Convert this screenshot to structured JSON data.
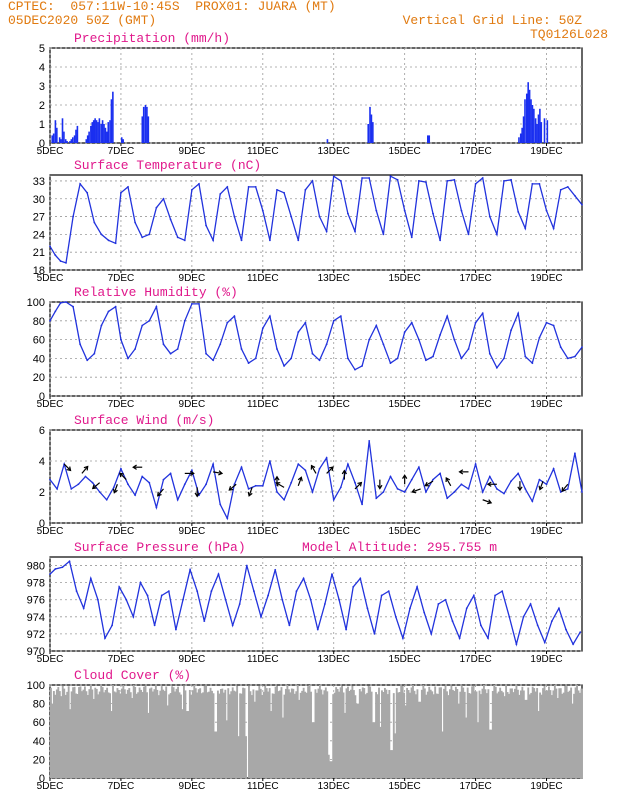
{
  "header": {
    "line1": "CPTEC:  057:11W-10:45S  PROX01: JUARA (MT)",
    "line2": "05DEC2020 50Z (GMT)",
    "grid_line": "Vertical Grid Line: 50Z",
    "code": "TQ0126L028"
  },
  "colors": {
    "header_text": "#e07a10",
    "panel_title": "#e0198c",
    "line": "#2233dd",
    "bar": "#1a2ff0",
    "cloud": "#a8a8a8",
    "grid": "#9a9a9a"
  },
  "x_axis": {
    "range": [
      5,
      20
    ],
    "ticks": [
      5,
      7,
      9,
      11,
      13,
      15,
      17,
      19
    ],
    "tick_labels": [
      "5DEC",
      "7DEC",
      "9DEC",
      "11DEC",
      "13DEC",
      "15DEC",
      "17DEC",
      "19DEC"
    ]
  },
  "chart_data": [
    {
      "type": "bar",
      "title": "Precipitation (mm/h)",
      "ylim": [
        0,
        5
      ],
      "yticks": [
        0,
        1,
        2,
        3,
        4,
        5
      ],
      "grid": true,
      "x": [
        5.04,
        5.08,
        5.13,
        5.17,
        5.25,
        5.29,
        5.33,
        5.37,
        5.42,
        5.46,
        5.54,
        5.58,
        5.62,
        5.67,
        5.71,
        5.75,
        6.0,
        6.04,
        6.08,
        6.13,
        6.17,
        6.21,
        6.25,
        6.29,
        6.33,
        6.37,
        6.42,
        6.46,
        6.5,
        6.54,
        6.58,
        6.62,
        6.67,
        6.71,
        6.75,
        7.0,
        7.04,
        7.58,
        7.62,
        7.67,
        7.71,
        7.75,
        12.8,
        13.95,
        14.0,
        14.04,
        14.08,
        15.63,
        15.67,
        18.2,
        18.25,
        18.29,
        18.33,
        18.37,
        18.42,
        18.46,
        18.5,
        18.54,
        18.58,
        18.62,
        18.67,
        18.71,
        18.75,
        18.79,
        18.83,
        18.92,
        19.0
      ],
      "values": [
        0.4,
        0.5,
        1.2,
        0.8,
        0.3,
        0.2,
        1.3,
        0.6,
        0.2,
        0.1,
        0.1,
        0.2,
        0.3,
        0.4,
        0.7,
        0.9,
        0.2,
        0.4,
        0.6,
        0.9,
        1.1,
        1.2,
        1.3,
        1.2,
        1.1,
        1.3,
        1.0,
        1.2,
        1.0,
        0.8,
        0.6,
        1.1,
        1.2,
        2.3,
        2.7,
        0.3,
        0.2,
        1.4,
        1.9,
        2.0,
        1.9,
        1.4,
        0.2,
        1.0,
        1.9,
        1.5,
        1.1,
        0.4,
        0.4,
        0.3,
        0.5,
        0.8,
        1.4,
        2.3,
        2.6,
        3.2,
        2.8,
        2.3,
        2.0,
        1.8,
        1.3,
        1.0,
        1.5,
        1.8,
        1.1,
        1.3,
        1.2
      ]
    },
    {
      "type": "line",
      "title": "Surface Temperature (nC)",
      "ylim": [
        18,
        34
      ],
      "yticks": [
        18,
        21,
        24,
        27,
        30,
        33
      ],
      "grid": true,
      "x": [
        5.0,
        5.15,
        5.3,
        5.45,
        5.65,
        5.85,
        6.05,
        6.25,
        6.45,
        6.65,
        6.85,
        7.0,
        7.2,
        7.4,
        7.6,
        7.8,
        8.0,
        8.2,
        8.4,
        8.6,
        8.8,
        9.0,
        9.2,
        9.4,
        9.6,
        9.8,
        10.0,
        10.2,
        10.4,
        10.6,
        10.8,
        11.0,
        11.2,
        11.4,
        11.6,
        11.8,
        12.0,
        12.2,
        12.4,
        12.6,
        12.8,
        13.0,
        13.2,
        13.4,
        13.6,
        13.8,
        14.0,
        14.2,
        14.4,
        14.6,
        14.8,
        15.0,
        15.2,
        15.4,
        15.6,
        15.8,
        16.0,
        16.2,
        16.4,
        16.6,
        16.8,
        17.0,
        17.2,
        17.4,
        17.6,
        17.8,
        18.0,
        18.2,
        18.4,
        18.6,
        18.8,
        19.0,
        19.2,
        19.4,
        19.6,
        19.8,
        20.0
      ],
      "values": [
        22,
        20.5,
        19.5,
        19.2,
        27,
        32.5,
        31,
        26,
        24,
        23,
        22.5,
        31,
        32,
        26,
        23.5,
        24,
        28.5,
        30,
        26.5,
        23.5,
        23,
        31.5,
        32.5,
        25.5,
        23,
        30.8,
        32,
        27,
        23,
        32,
        32,
        28,
        23,
        31.5,
        31,
        27,
        23,
        31.5,
        33,
        27,
        24.5,
        33.8,
        33,
        27.5,
        24.5,
        33.5,
        33.5,
        28,
        24,
        33.8,
        33.2,
        28,
        23.5,
        33,
        32.8,
        27.5,
        23,
        33,
        33.2,
        28,
        24,
        32.5,
        33.5,
        27,
        24,
        33,
        33.2,
        27.8,
        25,
        32.5,
        32.5,
        28,
        25,
        31.5,
        32,
        30.5,
        29
      ]
    },
    {
      "type": "line",
      "title": "Relative Humidity (%)",
      "ylim": [
        0,
        100
      ],
      "yticks": [
        0,
        20,
        40,
        60,
        80,
        100
      ],
      "grid": true,
      "x": [
        5.0,
        5.15,
        5.3,
        5.45,
        5.65,
        5.85,
        6.05,
        6.25,
        6.45,
        6.65,
        6.85,
        7.0,
        7.2,
        7.4,
        7.6,
        7.8,
        8.0,
        8.2,
        8.4,
        8.6,
        8.8,
        9.0,
        9.2,
        9.4,
        9.6,
        9.8,
        10.0,
        10.2,
        10.4,
        10.6,
        10.8,
        11.0,
        11.2,
        11.4,
        11.6,
        11.8,
        12.0,
        12.2,
        12.4,
        12.6,
        12.8,
        13.0,
        13.2,
        13.4,
        13.6,
        13.8,
        14.0,
        14.2,
        14.4,
        14.6,
        14.8,
        15.0,
        15.2,
        15.4,
        15.6,
        15.8,
        16.0,
        16.2,
        16.4,
        16.6,
        16.8,
        17.0,
        17.2,
        17.4,
        17.6,
        17.8,
        18.0,
        18.2,
        18.4,
        18.6,
        18.8,
        19.0,
        19.2,
        19.4,
        19.6,
        19.8,
        20.0
      ],
      "values": [
        80,
        90,
        99,
        100,
        95,
        55,
        38,
        45,
        75,
        90,
        95,
        60,
        40,
        50,
        75,
        80,
        95,
        55,
        45,
        50,
        80,
        98,
        98,
        45,
        38,
        55,
        78,
        85,
        50,
        35,
        40,
        72,
        85,
        50,
        32,
        40,
        68,
        78,
        45,
        38,
        55,
        80,
        85,
        40,
        28,
        32,
        60,
        75,
        55,
        35,
        40,
        68,
        78,
        60,
        38,
        42,
        65,
        85,
        60,
        40,
        50,
        78,
        88,
        45,
        30,
        40,
        70,
        88,
        42,
        35,
        62,
        78,
        75,
        52,
        40,
        42,
        52
      ]
    },
    {
      "type": "line",
      "title": "Surface Wind (m/s)",
      "ylim": [
        0,
        6
      ],
      "yticks": [
        0,
        2,
        4,
        6
      ],
      "grid": true,
      "x": [
        5.0,
        5.2,
        5.4,
        5.6,
        5.8,
        6.0,
        6.2,
        6.4,
        6.6,
        6.8,
        7.0,
        7.2,
        7.4,
        7.6,
        7.8,
        8.0,
        8.2,
        8.4,
        8.6,
        8.8,
        9.0,
        9.2,
        9.4,
        9.6,
        9.8,
        10.0,
        10.2,
        10.4,
        10.6,
        10.8,
        11.0,
        11.2,
        11.4,
        11.6,
        11.8,
        12.0,
        12.2,
        12.4,
        12.6,
        12.8,
        13.0,
        13.2,
        13.4,
        13.6,
        13.8,
        14.0,
        14.2,
        14.4,
        14.6,
        14.8,
        15.0,
        15.2,
        15.4,
        15.6,
        15.8,
        16.0,
        16.2,
        16.4,
        16.6,
        16.8,
        17.0,
        17.2,
        17.4,
        17.6,
        17.8,
        18.0,
        18.2,
        18.4,
        18.6,
        18.8,
        19.0,
        19.2,
        19.4,
        19.6,
        19.8,
        20.0
      ],
      "values": [
        2.8,
        2.2,
        3.8,
        2.2,
        2.5,
        3.0,
        2.6,
        2.0,
        1.5,
        2.3,
        3.5,
        2.5,
        1.8,
        3.0,
        2.6,
        1.0,
        2.8,
        3.2,
        1.5,
        2.5,
        3.4,
        1.8,
        2.5,
        3.8,
        1.2,
        0.3,
        2.5,
        3.6,
        2.2,
        2.4,
        2.4,
        4.0,
        2.0,
        1.5,
        2.6,
        3.8,
        3.4,
        2.0,
        3.5,
        4.2,
        1.5,
        2.3,
        3.8,
        2.6,
        1.2,
        5.3,
        1.6,
        2.0,
        3.0,
        2.2,
        2.0,
        2.8,
        3.6,
        2.0,
        2.8,
        3.2,
        1.6,
        2.0,
        2.5,
        2.2,
        3.8,
        2.0,
        3.0,
        2.2,
        1.9,
        2.7,
        3.2,
        2.2,
        1.4,
        2.8,
        2.5,
        3.5,
        2.0,
        2.2,
        4.5,
        2.0
      ],
      "arrows": [
        {
          "x": 5.4,
          "y": 3.8,
          "dir": 135
        },
        {
          "x": 5.9,
          "y": 3.2,
          "dir": 40
        },
        {
          "x": 6.4,
          "y": 2.6,
          "dir": 230
        },
        {
          "x": 6.9,
          "y": 2.5,
          "dir": 200
        },
        {
          "x": 7.15,
          "y": 2.8,
          "dir": 315
        },
        {
          "x": 7.6,
          "y": 3.6,
          "dir": 270
        },
        {
          "x": 8.2,
          "y": 2.2,
          "dir": 220
        },
        {
          "x": 8.8,
          "y": 3.2,
          "dir": 90
        },
        {
          "x": 9.15,
          "y": 2.3,
          "dir": 180
        },
        {
          "x": 9.6,
          "y": 3.3,
          "dir": 100
        },
        {
          "x": 10.25,
          "y": 2.5,
          "dir": 230
        },
        {
          "x": 10.7,
          "y": 2.3,
          "dir": 200
        },
        {
          "x": 11.4,
          "y": 2.4,
          "dir": 0
        },
        {
          "x": 11.6,
          "y": 2.3,
          "dir": 300
        },
        {
          "x": 12.0,
          "y": 2.4,
          "dir": 20
        },
        {
          "x": 12.5,
          "y": 3.2,
          "dir": 330
        },
        {
          "x": 12.8,
          "y": 3.2,
          "dir": 45
        },
        {
          "x": 13.3,
          "y": 2.8,
          "dir": 0
        },
        {
          "x": 13.6,
          "y": 2.2,
          "dir": 45
        },
        {
          "x": 14.3,
          "y": 2.8,
          "dir": 180
        },
        {
          "x": 15.0,
          "y": 2.5,
          "dir": 0
        },
        {
          "x": 15.45,
          "y": 2.2,
          "dir": 250
        },
        {
          "x": 15.8,
          "y": 2.7,
          "dir": 240
        },
        {
          "x": 16.3,
          "y": 2.4,
          "dir": 330
        },
        {
          "x": 16.8,
          "y": 3.3,
          "dir": 270
        },
        {
          "x": 17.2,
          "y": 1.5,
          "dir": 110
        },
        {
          "x": 17.6,
          "y": 2.5,
          "dir": 270
        },
        {
          "x": 18.25,
          "y": 2.7,
          "dir": 180
        },
        {
          "x": 18.9,
          "y": 2.7,
          "dir": 200
        },
        {
          "x": 19.6,
          "y": 2.5,
          "dir": 220
        }
      ]
    },
    {
      "type": "line",
      "title": "Surface Pressure (hPa)",
      "subtitle": "Model Altitude: 295.755 m",
      "ylim": [
        970,
        981
      ],
      "yticks": [
        970,
        972,
        974,
        976,
        978,
        980
      ],
      "grid": true,
      "x": [
        5.0,
        5.15,
        5.35,
        5.55,
        5.75,
        5.95,
        6.15,
        6.35,
        6.55,
        6.75,
        6.95,
        7.15,
        7.35,
        7.55,
        7.75,
        7.95,
        8.15,
        8.35,
        8.55,
        8.75,
        8.95,
        9.15,
        9.35,
        9.55,
        9.75,
        9.95,
        10.15,
        10.35,
        10.55,
        10.75,
        10.95,
        11.15,
        11.35,
        11.55,
        11.75,
        11.95,
        12.15,
        12.35,
        12.55,
        12.75,
        12.95,
        13.15,
        13.35,
        13.55,
        13.75,
        13.95,
        14.15,
        14.35,
        14.55,
        14.75,
        14.95,
        15.15,
        15.35,
        15.55,
        15.75,
        15.95,
        16.15,
        16.35,
        16.55,
        16.75,
        16.95,
        17.15,
        17.35,
        17.55,
        17.75,
        17.95,
        18.15,
        18.35,
        18.55,
        18.75,
        18.95,
        19.15,
        19.35,
        19.55,
        19.75,
        19.95
      ],
      "values": [
        979,
        979.6,
        979.8,
        980.5,
        977,
        975,
        978.5,
        976,
        971.5,
        973,
        977.5,
        976,
        974,
        978,
        976.5,
        973,
        976.5,
        977,
        972.5,
        976,
        979.5,
        977,
        973.5,
        977,
        979,
        976,
        973,
        975.5,
        980,
        977,
        974,
        976.5,
        979.5,
        976,
        973,
        977,
        978.5,
        976,
        972.5,
        975.5,
        979,
        976,
        972.5,
        977.5,
        978.5,
        975,
        972,
        976.5,
        977,
        974,
        971.5,
        975,
        977.5,
        974.5,
        972,
        975.5,
        976,
        973.5,
        971.5,
        975,
        976.5,
        973,
        971.5,
        976.5,
        977,
        974,
        970.8,
        974,
        975.5,
        973,
        971,
        973.5,
        975,
        972.5,
        970.8,
        972.2
      ]
    },
    {
      "type": "area",
      "title": "Cloud Cover (%)",
      "ylim": [
        0,
        100
      ],
      "yticks": [
        0,
        20,
        40,
        60,
        80,
        100
      ],
      "grid": true,
      "step_hours": 1,
      "start": 5.0,
      "baseline": 95,
      "dips": [
        {
          "x": 5.05,
          "y": 80
        },
        {
          "x": 5.3,
          "y": 88
        },
        {
          "x": 5.55,
          "y": 74
        },
        {
          "x": 6.2,
          "y": 85
        },
        {
          "x": 6.7,
          "y": 72
        },
        {
          "x": 7.3,
          "y": 86
        },
        {
          "x": 7.75,
          "y": 70
        },
        {
          "x": 8.3,
          "y": 78
        },
        {
          "x": 8.7,
          "y": 74
        },
        {
          "x": 8.85,
          "y": 72
        },
        {
          "x": 9.65,
          "y": 50
        },
        {
          "x": 9.95,
          "y": 62
        },
        {
          "x": 10.3,
          "y": 45
        },
        {
          "x": 10.5,
          "y": 45
        },
        {
          "x": 10.55,
          "y": 0
        },
        {
          "x": 10.75,
          "y": 82
        },
        {
          "x": 11.2,
          "y": 72
        },
        {
          "x": 11.55,
          "y": 65
        },
        {
          "x": 12.0,
          "y": 84
        },
        {
          "x": 12.4,
          "y": 60
        },
        {
          "x": 12.85,
          "y": 25
        },
        {
          "x": 12.9,
          "y": 18
        },
        {
          "x": 13.3,
          "y": 70
        },
        {
          "x": 13.65,
          "y": 80
        },
        {
          "x": 14.1,
          "y": 60
        },
        {
          "x": 14.3,
          "y": 55
        },
        {
          "x": 14.6,
          "y": 30
        },
        {
          "x": 14.7,
          "y": 48
        },
        {
          "x": 15.0,
          "y": 78
        },
        {
          "x": 15.4,
          "y": 82
        },
        {
          "x": 15.8,
          "y": 90
        },
        {
          "x": 16.05,
          "y": 50
        },
        {
          "x": 16.5,
          "y": 80
        },
        {
          "x": 16.7,
          "y": 65
        },
        {
          "x": 17.05,
          "y": 60
        },
        {
          "x": 17.4,
          "y": 52
        },
        {
          "x": 17.8,
          "y": 88
        },
        {
          "x": 18.4,
          "y": 84
        },
        {
          "x": 18.75,
          "y": 72
        },
        {
          "x": 19.3,
          "y": 86
        },
        {
          "x": 19.7,
          "y": 80
        }
      ]
    }
  ]
}
